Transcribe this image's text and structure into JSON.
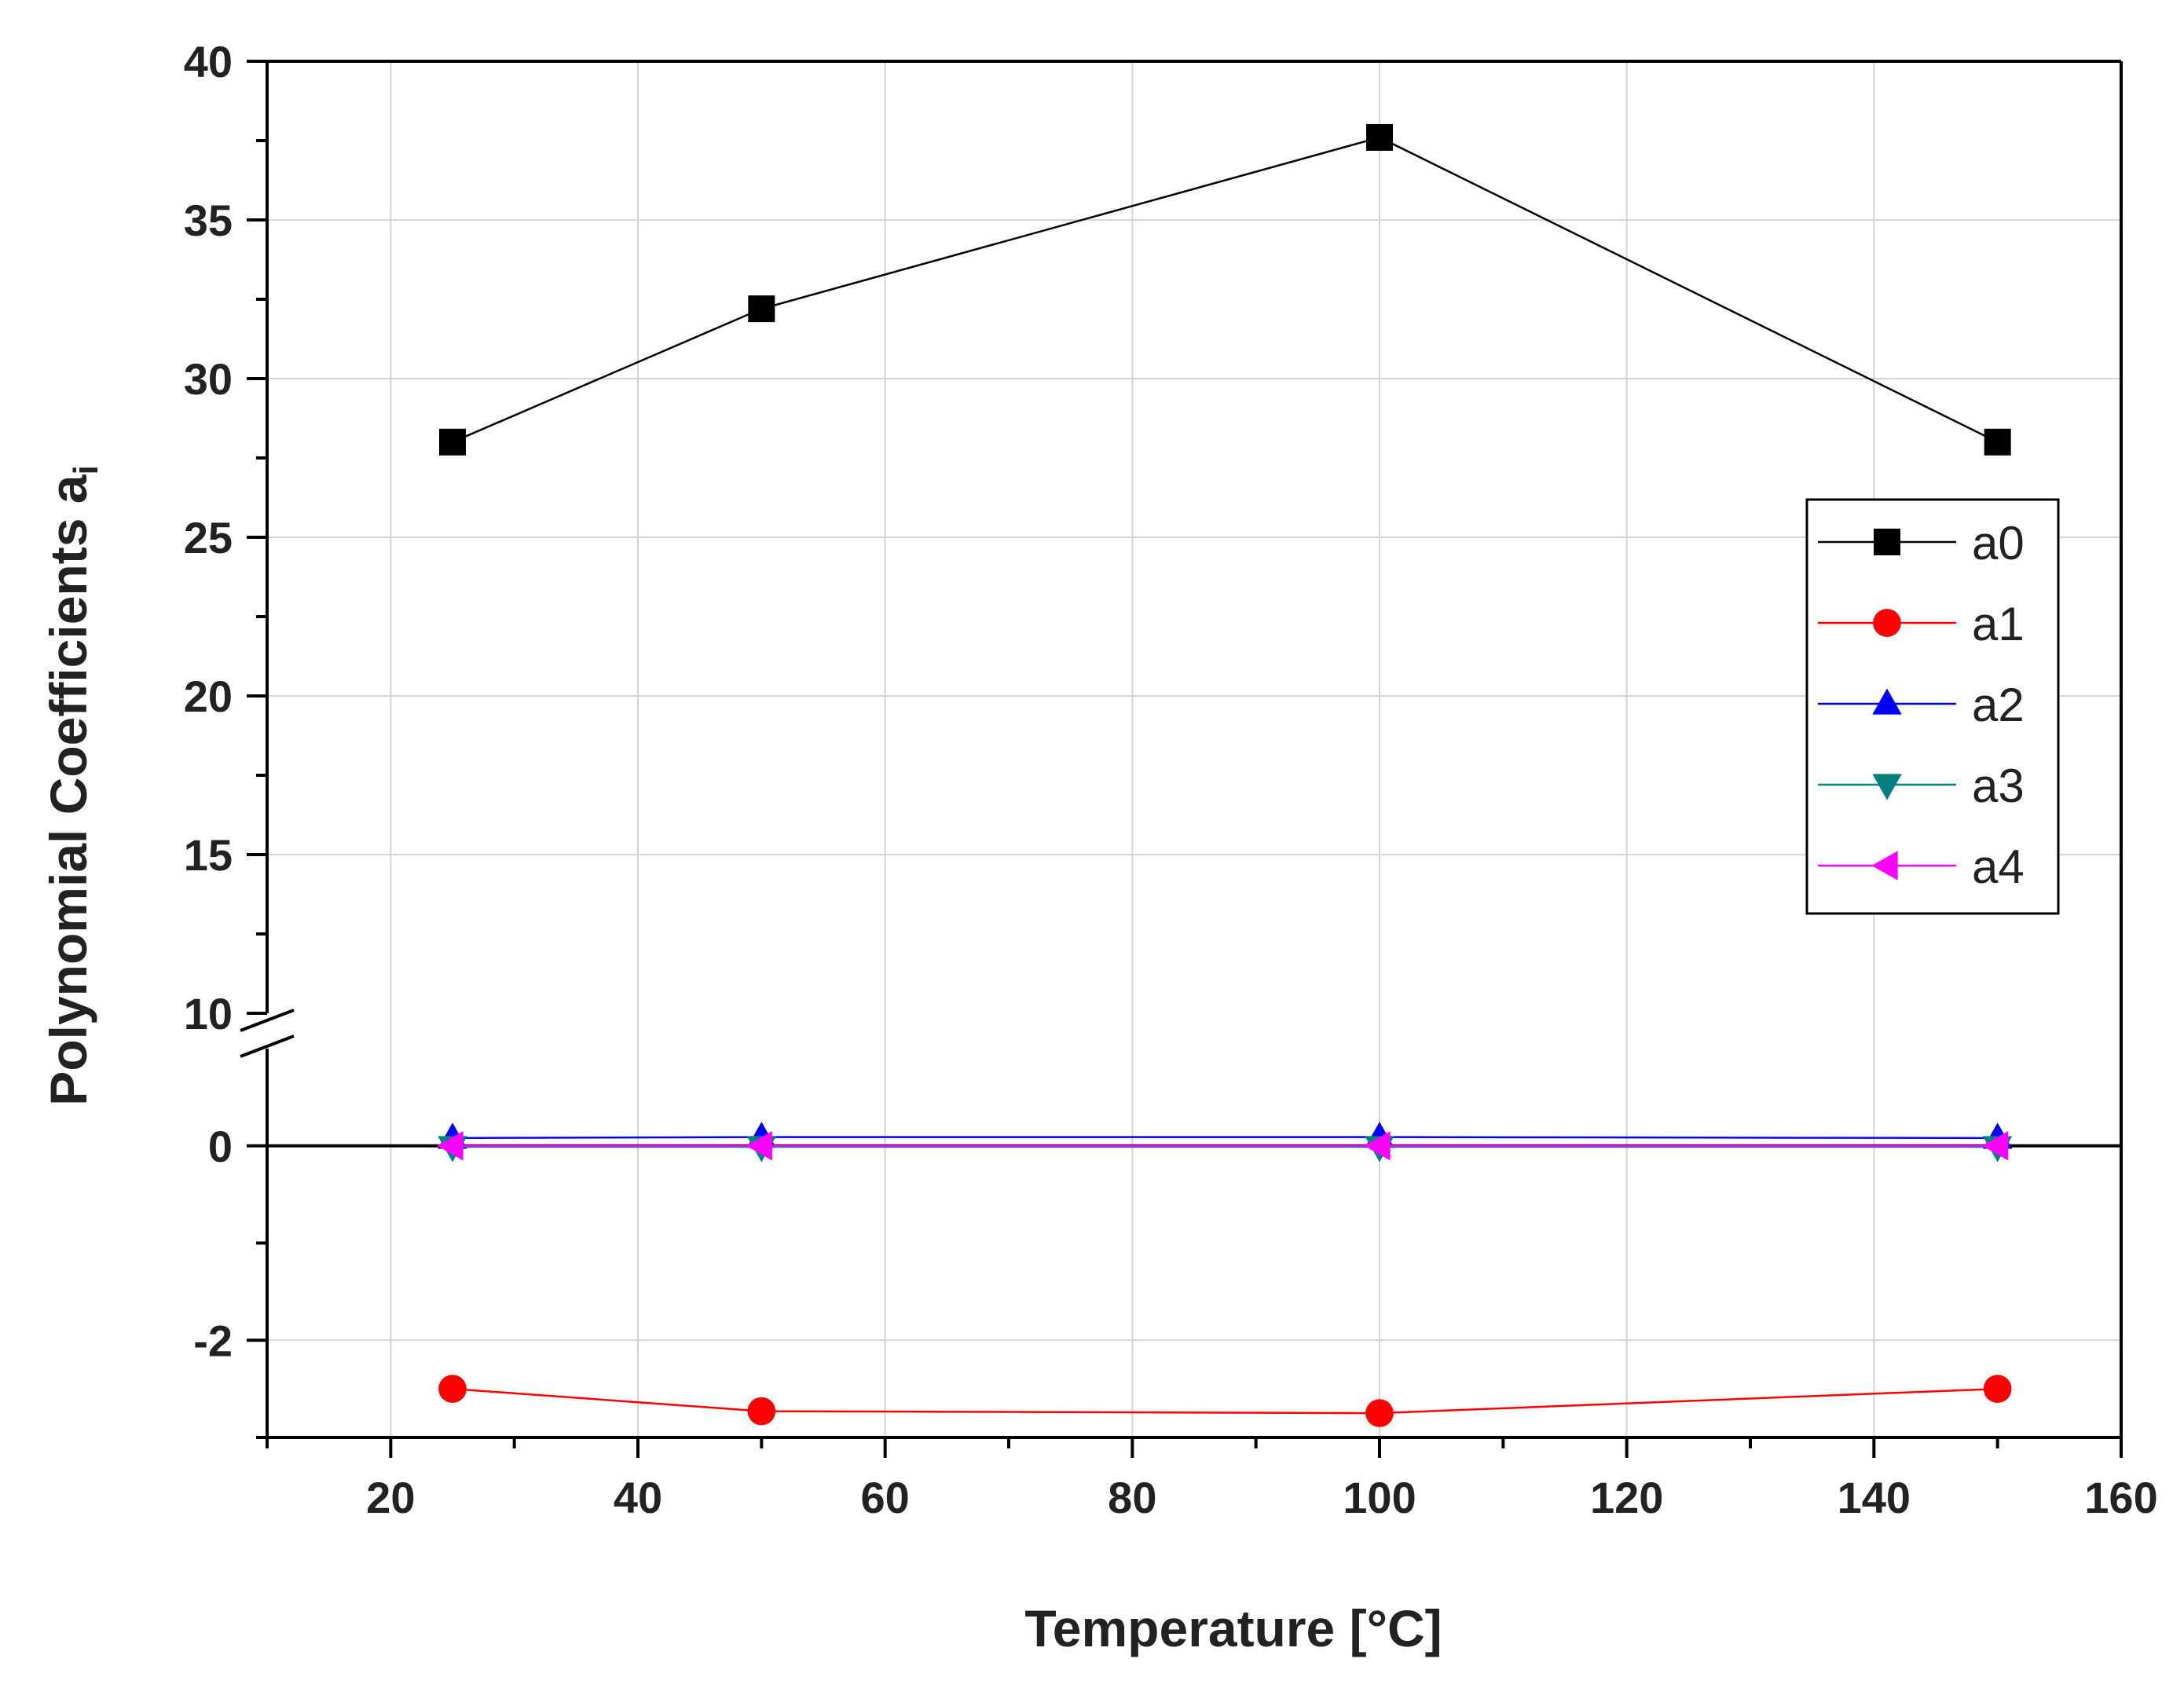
{
  "chart_data": {
    "type": "line",
    "title": "",
    "xlabel": "Temperature [°C]",
    "ylabel": "Polynomial Coefficients a",
    "ylabel_subscript": "i",
    "xlim": [
      10,
      160
    ],
    "xticks": [
      20,
      40,
      60,
      80,
      100,
      120,
      140,
      160
    ],
    "y_axis_break": {
      "upper_segment": {
        "ylim": [
          10,
          40
        ],
        "ticks": [
          10,
          15,
          20,
          25,
          30,
          35,
          40
        ]
      },
      "lower_segment": {
        "ylim": [
          -3,
          1
        ],
        "ticks": [
          -2,
          0
        ]
      }
    },
    "grid": true,
    "legend_position": "right",
    "x": [
      25,
      50,
      100,
      150
    ],
    "series": [
      {
        "name": "a0",
        "color": "#000000",
        "marker": "square",
        "values": [
          28.0,
          32.2,
          37.6,
          28.0
        ]
      },
      {
        "name": "a1",
        "color": "#ff0000",
        "marker": "circle",
        "values": [
          -2.5,
          -2.73,
          -2.75,
          -2.5
        ]
      },
      {
        "name": "a2",
        "color": "#0000ff",
        "marker": "triangle-up",
        "values": [
          0.08,
          0.09,
          0.09,
          0.08
        ]
      },
      {
        "name": "a3",
        "color": "#008080",
        "marker": "triangle-down",
        "values": [
          -0.01,
          -0.01,
          -0.01,
          -0.01
        ]
      },
      {
        "name": "a4",
        "color": "#ff00ff",
        "marker": "triangle-left",
        "values": [
          0.0,
          0.0,
          0.0,
          0.0
        ]
      }
    ]
  }
}
